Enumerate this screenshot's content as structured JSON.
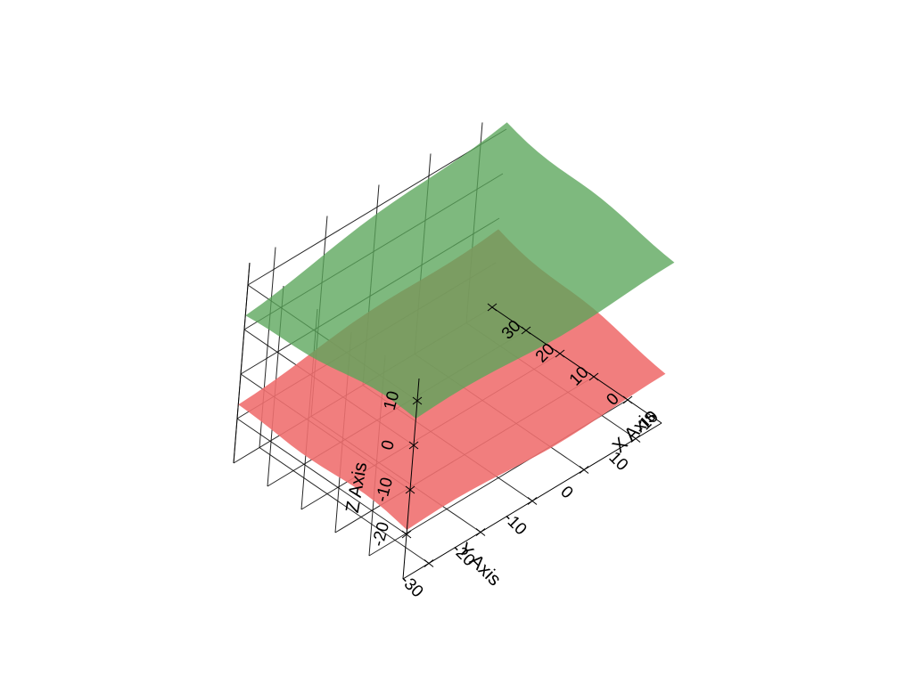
{
  "chart_data": {
    "type": "surface3d",
    "title": "",
    "xlabel": "X Axis",
    "ylabel": "Y Axis",
    "zlabel": "Z Axis",
    "xlim": [
      -20,
      30
    ],
    "ylim": [
      -35,
      15
    ],
    "zlim": [
      -30,
      15
    ],
    "x_ticks": [
      "-10",
      "0",
      "10",
      "20",
      "30"
    ],
    "y_ticks": [
      "-30",
      "-20",
      "-10",
      "0",
      "10"
    ],
    "z_ticks": [
      "-20",
      "-10",
      "0",
      "10"
    ],
    "grid": true,
    "surfaces": [
      {
        "id": "surface-lower",
        "color": "#f07070",
        "opacity": 0.9,
        "corners_z": {
          "x_min_y_min": -19,
          "x_max_y_min": -17,
          "x_min_y_max": -19,
          "x_max_y_max": -12
        }
      },
      {
        "id": "surface-upper",
        "color": "#5aa55a",
        "opacity": 0.78,
        "corners_z": {
          "x_min_y_min": 6,
          "x_max_y_min": 3,
          "x_min_y_max": 6,
          "x_max_y_max": 12
        }
      }
    ]
  }
}
